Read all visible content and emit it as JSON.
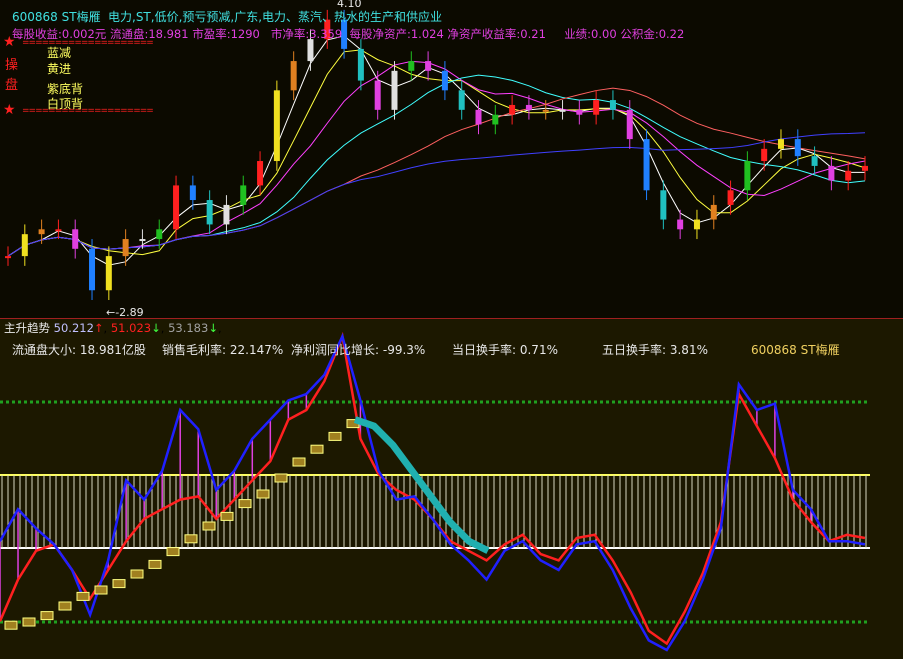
{
  "header": {
    "code_name": "600868 ST梅雁",
    "concepts": "电力,ST,低价,预亏预减,广东,电力、蒸汽、热水的生产和供应业",
    "fundamentals": [
      "每股收益:0.002元",
      "流通盘:18.981",
      "市盈率:1290",
      "市净率:3.359",
      "每股净资产:1.024",
      "净资产收益率:0.21",
      "业绩:0.00",
      "公积金:0.22"
    ]
  },
  "legend": {
    "star_icon": "star",
    "side_label": [
      "操",
      "盘"
    ],
    "items": [
      "蓝减",
      "黄进",
      "紫底背",
      "白顶背"
    ]
  },
  "price_labels": {
    "high": "4.10",
    "low": "←-2.89"
  },
  "indicator_header": {
    "name": "主升趋势",
    "v1": "50.212",
    "a1": "↑",
    "v2": "51.023",
    "a2": "↓",
    "v3": "53.183",
    "a3": "↓"
  },
  "info_row": [
    "流通盘大小: 18.981亿股",
    "销售毛利率: 22.147%",
    "净利润同比增长: -99.3%",
    "当日换手率: 0.71%",
    "五日换手率: 3.81%"
  ],
  "info_code": "600868 ST梅雁",
  "colors": {
    "up": "#ff2020",
    "down": "#20c0c0",
    "blue": "#2020ff",
    "red": "#ff2020",
    "yellow": "#ffff40",
    "cyan": "#20b0b0"
  },
  "chart_data": [
    {
      "type": "candlestick",
      "approx_close": [
        3.07,
        3.16,
        3.18,
        3.18,
        3.1,
        2.93,
        3.07,
        3.14,
        3.14,
        3.18,
        3.36,
        3.3,
        3.2,
        3.28,
        3.36,
        3.46,
        3.75,
        3.87,
        3.96,
        4.04,
        3.92,
        3.79,
        3.67,
        3.83,
        3.87,
        3.83,
        3.75,
        3.67,
        3.61,
        3.65,
        3.69,
        3.67,
        3.67,
        3.67,
        3.65,
        3.71,
        3.67,
        3.55,
        3.34,
        3.22,
        3.18,
        3.22,
        3.28,
        3.34,
        3.46,
        3.51,
        3.55,
        3.48,
        3.44,
        3.38,
        3.42,
        3.44
      ],
      "high": 4.1,
      "low": 2.89
    },
    {
      "type": "line",
      "series": [
        {
          "color": "blue",
          "values": [
            34,
            44,
            38,
            33,
            25,
            11,
            28,
            53,
            47,
            56,
            75,
            69,
            50,
            56,
            66,
            72,
            78,
            80,
            86,
            98,
            78,
            56,
            47,
            48,
            41,
            33,
            28,
            22,
            31,
            34,
            28,
            25,
            33,
            34,
            25,
            13,
            3,
            0,
            9,
            22,
            38,
            83,
            75,
            77,
            50,
            44,
            34,
            34,
            33
          ]
        },
        {
          "color": "red",
          "values": [
            9,
            22,
            31,
            33,
            25,
            16,
            25,
            34,
            41,
            44,
            47,
            48,
            41,
            47,
            53,
            59,
            72,
            75,
            84,
            98,
            66,
            55,
            50,
            47,
            41,
            34,
            31,
            28,
            33,
            36,
            30,
            28,
            35,
            36,
            28,
            18,
            6,
            2,
            12,
            24,
            40,
            80,
            70,
            60,
            47,
            40,
            34,
            36,
            35
          ]
        },
        {
          "color": "yellow-step",
          "values": [
            9,
            10,
            12,
            15,
            18,
            20,
            22,
            25,
            28,
            32,
            36,
            40,
            43,
            47,
            50,
            55,
            60,
            64,
            68,
            72
          ]
        },
        {
          "color": "cyan",
          "values": [
            72,
            70,
            64,
            56,
            48,
            40,
            34,
            31
          ]
        }
      ]
    }
  ]
}
